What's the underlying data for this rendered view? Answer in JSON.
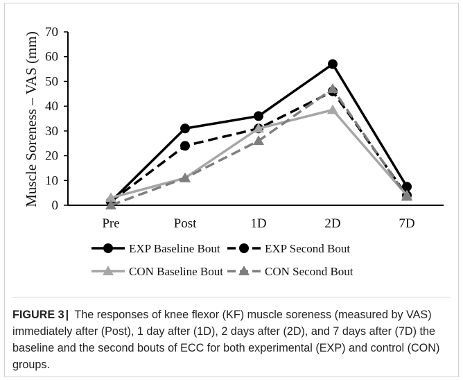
{
  "chart_data": {
    "type": "line",
    "ylabel": "Muscle Soreness – VAS (mm)",
    "xlabel": "",
    "categories": [
      "Pre",
      "Post",
      "1D",
      "2D",
      "7D"
    ],
    "ylim": [
      0,
      70
    ],
    "yticks": [
      0,
      10,
      20,
      30,
      40,
      50,
      60,
      70
    ],
    "grid": false,
    "legend_position": "bottom",
    "series": [
      {
        "name": "EXP Baseline Bout",
        "values": [
          1.5,
          31,
          36,
          57,
          7.5
        ],
        "color": "#000000",
        "dash": "solid",
        "marker": "circle"
      },
      {
        "name": "EXP Second Bout",
        "values": [
          1.5,
          24,
          31,
          46,
          4
        ],
        "color": "#000000",
        "dash": "dashed",
        "marker": "circle"
      },
      {
        "name": "CON Baseline Bout",
        "values": [
          3,
          11,
          31,
          38.5,
          4
        ],
        "color": "#a6a6a6",
        "dash": "solid",
        "marker": "triangle"
      },
      {
        "name": "CON Second Bout",
        "values": [
          0,
          11,
          26,
          47,
          3.5
        ],
        "color": "#7f7f7f",
        "dash": "dashed",
        "marker": "triangle"
      }
    ]
  },
  "caption": {
    "label": "FIGURE 3",
    "separator": "|",
    "text": "The responses of knee flexor (KF) muscle soreness (measured by VAS) immediately after (Post), 1 day after (1D), 2 days after (2D), and 7 days after (7D) the baseline and the second bouts of ECC for both experimental (EXP) and control (CON) groups."
  }
}
